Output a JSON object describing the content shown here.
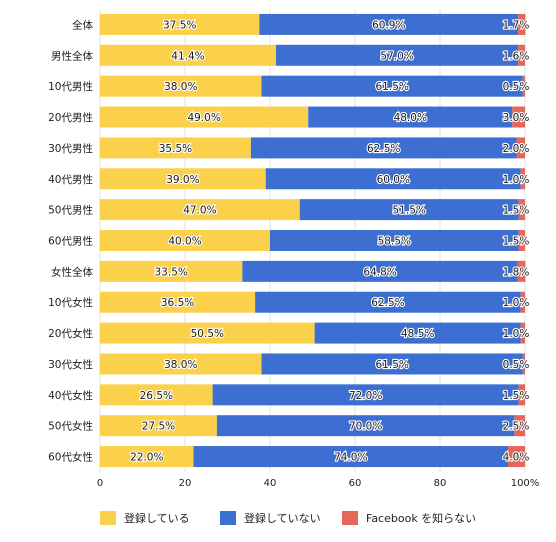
{
  "chart_data": {
    "type": "bar",
    "orientation": "horizontal",
    "stacked": true,
    "categories": [
      "全体",
      "男性全体",
      "10代男性",
      "20代男性",
      "30代男性",
      "40代男性",
      "50代男性",
      "60代男性",
      "女性全体",
      "10代女性",
      "20代女性",
      "30代女性",
      "40代女性",
      "50代女性",
      "60代女性"
    ],
    "series": [
      {
        "name": "登録している",
        "color": "#fbd04b",
        "values": [
          37.5,
          41.4,
          38.0,
          49.0,
          35.5,
          39.0,
          47.0,
          40.0,
          33.5,
          36.5,
          50.5,
          38.0,
          26.5,
          27.5,
          22.0
        ],
        "labels": [
          "37.5%",
          "41.4%",
          "38.0%",
          "49.0%",
          "35.5%",
          "39.0%",
          "47.0%",
          "40.0%",
          "33.5%",
          "36.5%",
          "50.5%",
          "38.0%",
          "26.5%",
          "27.5%",
          "22.0%"
        ]
      },
      {
        "name": "登録していない",
        "color": "#3c6fd1",
        "values": [
          60.9,
          57.0,
          61.5,
          48.0,
          62.5,
          60.0,
          51.5,
          58.5,
          64.8,
          62.5,
          48.5,
          61.5,
          72.0,
          70.0,
          74.0
        ],
        "labels": [
          "60.9%",
          "57.0%",
          "61.5%",
          "48.0%",
          "62.5%",
          "60.0%",
          "51.5%",
          "58.5%",
          "64.8%",
          "62.5%",
          "48.5%",
          "61.5%",
          "72.0%",
          "70.0%",
          "74.0%"
        ]
      },
      {
        "name": "Facebook を知らない",
        "color": "#e4675a",
        "values": [
          1.7,
          1.6,
          0.5,
          3.0,
          2.0,
          1.0,
          1.5,
          1.5,
          1.8,
          1.0,
          1.0,
          0.5,
          1.5,
          2.5,
          4.0
        ],
        "labels": [
          "1.7%",
          "1.6%",
          "0.5%",
          "3.0%",
          "2.0%",
          "1.0%",
          "1.5%",
          "1.5%",
          "1.8%",
          "1.0%",
          "1.0%",
          "0.5%",
          "1.5%",
          "2.5%",
          "4.0%"
        ]
      }
    ],
    "x_ticks": [
      "0",
      "20",
      "40",
      "60",
      "80",
      "100%"
    ],
    "xlim": [
      0,
      100
    ],
    "grid": true,
    "legend_position": "bottom"
  }
}
